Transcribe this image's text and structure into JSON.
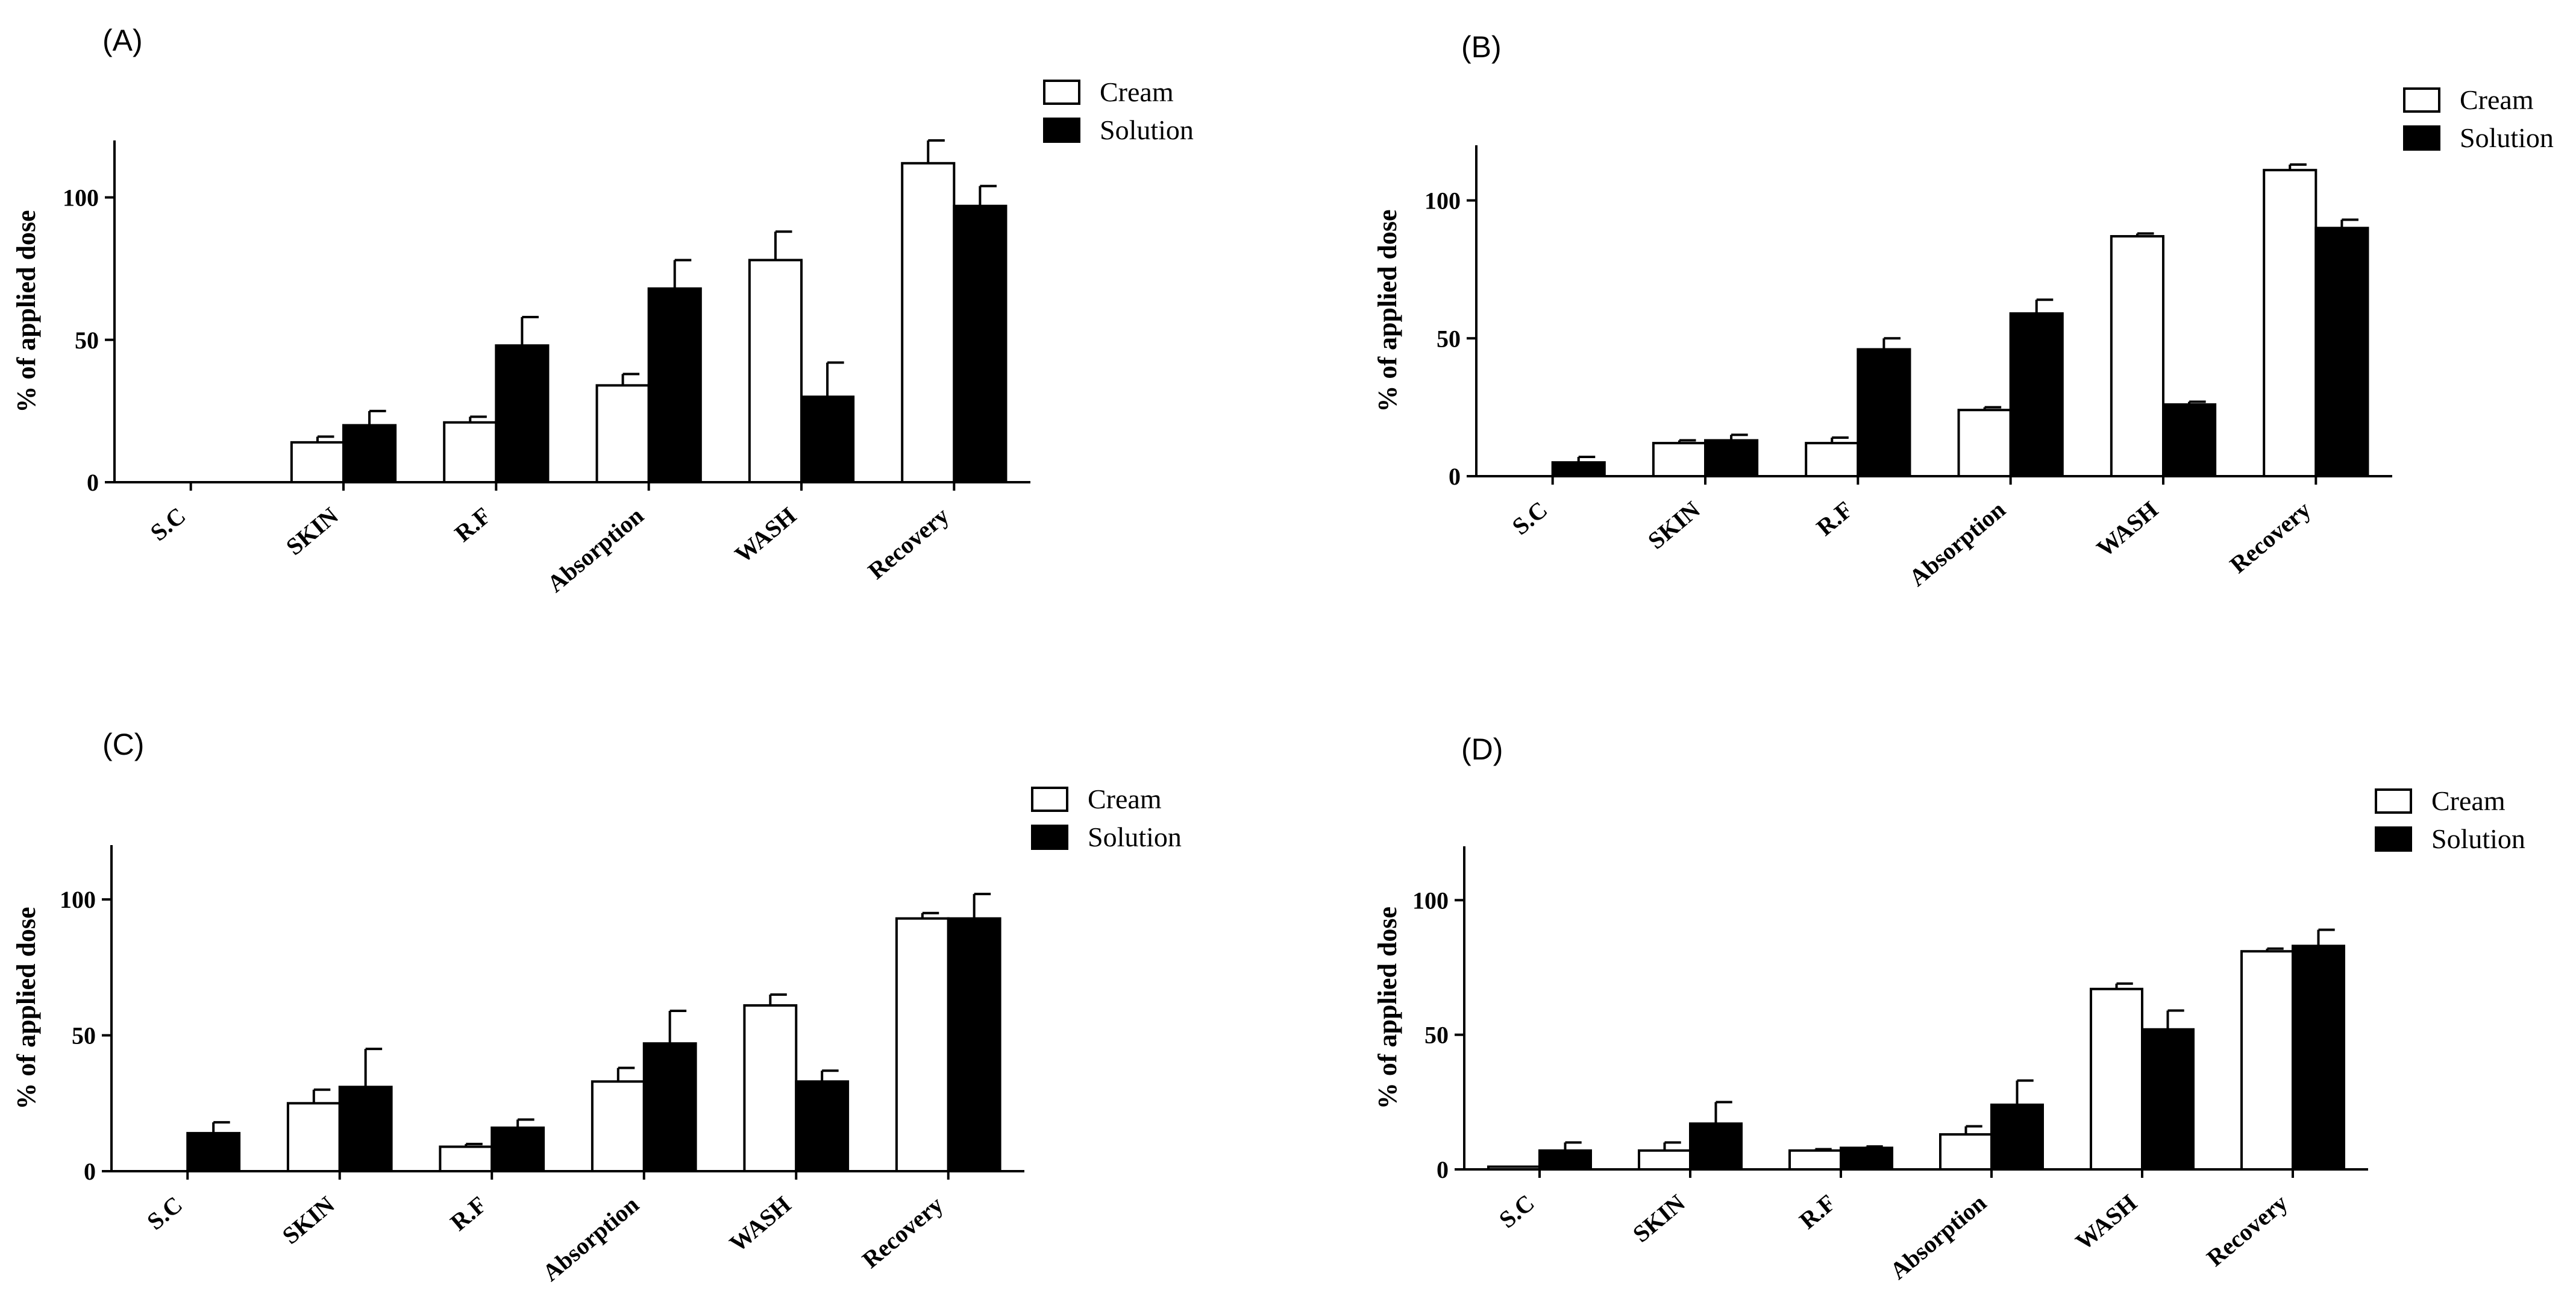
{
  "chart_data": [
    {
      "type": "bar",
      "panel": "(A)",
      "ylabel": "% of applied dose",
      "ylim": [
        0,
        120
      ],
      "yticks": [
        0,
        50,
        100
      ],
      "categories": [
        "S.C",
        "SKIN",
        "R.F",
        "Absorption",
        "WASH",
        "Recovery"
      ],
      "series": [
        {
          "name": "Cream",
          "color": "#ffffff",
          "values": [
            0,
            14,
            21,
            34,
            78,
            112
          ],
          "errors": [
            0,
            2,
            2,
            4,
            10,
            8
          ]
        },
        {
          "name": "Solution",
          "color": "#000000",
          "values": [
            0,
            20,
            48,
            68,
            30,
            97
          ],
          "errors": [
            0,
            5,
            10,
            10,
            12,
            7
          ]
        }
      ]
    },
    {
      "type": "bar",
      "panel": "(B)",
      "ylabel": "% of applied dose",
      "ylim": [
        0,
        120
      ],
      "yticks": [
        0,
        50,
        100
      ],
      "categories": [
        "S.C",
        "SKIN",
        "R.F",
        "Absorption",
        "WASH",
        "Recovery"
      ],
      "series": [
        {
          "name": "Cream",
          "color": "#ffffff",
          "values": [
            0,
            12,
            12,
            24,
            87,
            111
          ],
          "errors": [
            0,
            1,
            2,
            1,
            1,
            2
          ]
        },
        {
          "name": "Solution",
          "color": "#000000",
          "values": [
            5,
            13,
            46,
            59,
            26,
            90
          ],
          "errors": [
            2,
            2,
            4,
            5,
            1,
            3
          ]
        }
      ]
    },
    {
      "type": "bar",
      "panel": "(C)",
      "ylabel": "% of applied dose",
      "ylim": [
        0,
        120
      ],
      "yticks": [
        0,
        50,
        100
      ],
      "categories": [
        "S.C",
        "SKIN",
        "R.F",
        "Absorption",
        "WASH",
        "Recovery"
      ],
      "series": [
        {
          "name": "Cream",
          "color": "#ffffff",
          "values": [
            0,
            25,
            9,
            33,
            61,
            93
          ],
          "errors": [
            0,
            5,
            1,
            5,
            4,
            2
          ]
        },
        {
          "name": "Solution",
          "color": "#000000",
          "values": [
            14,
            31,
            16,
            47,
            33,
            93
          ],
          "errors": [
            4,
            14,
            3,
            12,
            4,
            9
          ]
        }
      ]
    },
    {
      "type": "bar",
      "panel": "(D)",
      "ylabel": "% of applied dose",
      "ylim": [
        0,
        120
      ],
      "yticks": [
        0,
        50,
        100
      ],
      "categories": [
        "S.C",
        "SKIN",
        "R.F",
        "Absorption",
        "WASH",
        "Recovery"
      ],
      "series": [
        {
          "name": "Cream",
          "color": "#ffffff",
          "values": [
            1,
            7,
            7,
            13,
            67,
            81
          ],
          "errors": [
            0,
            3,
            0.5,
            3,
            2,
            1
          ]
        },
        {
          "name": "Solution",
          "color": "#000000",
          "values": [
            7,
            17,
            8,
            24,
            52,
            83
          ],
          "errors": [
            3,
            8,
            0.5,
            9,
            7,
            6
          ]
        }
      ]
    }
  ]
}
